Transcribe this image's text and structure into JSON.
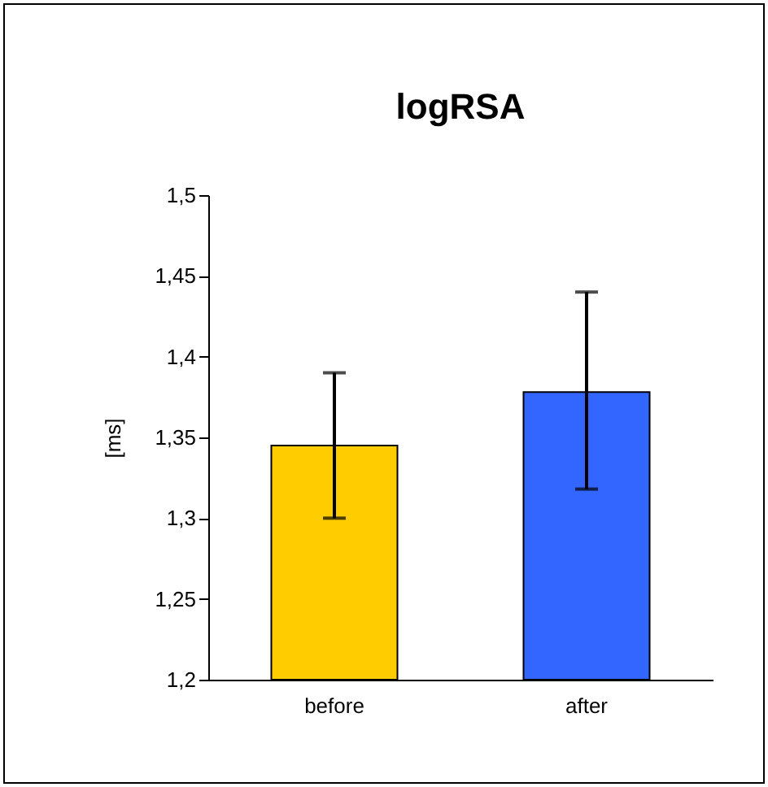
{
  "chart_data": {
    "type": "bar",
    "title": "logRSA",
    "ylabel": "[ms]",
    "categories": [
      "before",
      "after"
    ],
    "values": [
      1.345,
      1.378
    ],
    "colors": [
      "#ffcc00",
      "#3366ff"
    ],
    "errors": [
      [
        1.3,
        1.39
      ],
      [
        1.318,
        1.44
      ]
    ],
    "ylim": [
      1.2,
      1.5
    ],
    "yticks": [
      {
        "value": 1.2,
        "label": "1,2"
      },
      {
        "value": 1.25,
        "label": "1,25"
      },
      {
        "value": 1.3,
        "label": "1,3"
      },
      {
        "value": 1.35,
        "label": "1,35"
      },
      {
        "value": 1.4,
        "label": "1,4"
      },
      {
        "value": 1.45,
        "label": "1,45"
      },
      {
        "value": 1.5,
        "label": "1,5"
      }
    ],
    "grid": false
  }
}
